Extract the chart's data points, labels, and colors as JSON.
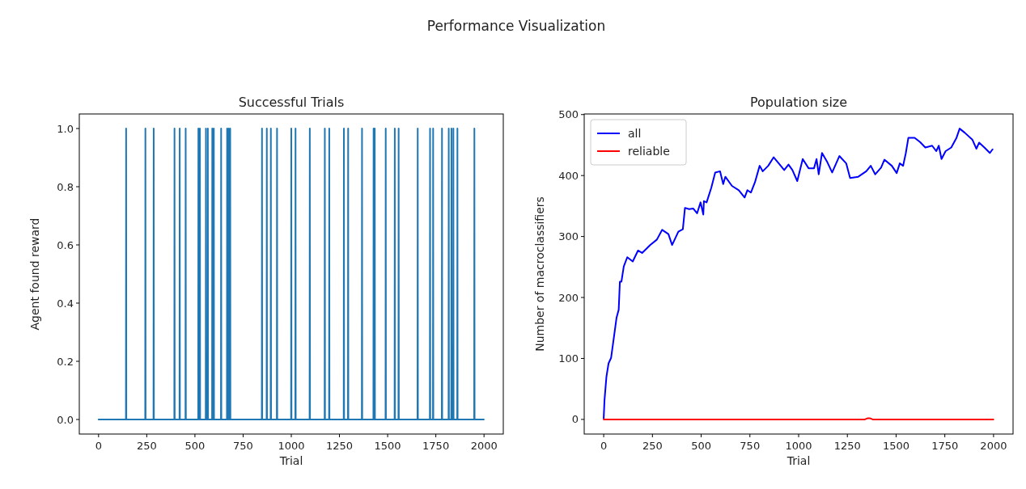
{
  "chart_data": [
    {
      "type": "line",
      "title": "Successful Trials",
      "xlabel": "Trial",
      "ylabel": "Agent found reward",
      "annotations": [
        "Performance Visualization"
      ],
      "xlim": [
        -100,
        2100
      ],
      "xticks": [
        0,
        250,
        500,
        750,
        1000,
        1250,
        1500,
        1750,
        2000
      ],
      "ylim": [
        -0.05,
        1.05
      ],
      "yticks": [
        {
          "value": 0,
          "label": "0.0"
        },
        {
          "value": 0.2,
          "label": "0.2"
        },
        {
          "value": 0.4,
          "label": "0.4"
        },
        {
          "value": 0.6,
          "label": "0.6"
        },
        {
          "value": 0.8,
          "label": "0.8"
        },
        {
          "value": 1,
          "label": "1.0"
        }
      ],
      "grid": false,
      "legend": false,
      "series": [
        {
          "color": "#1f77b4",
          "x": [
            0,
            142,
            143,
            144,
            242,
            243,
            244,
            285,
            286,
            287,
            393,
            394,
            395,
            420,
            421,
            422,
            451,
            452,
            453,
            517,
            518,
            519,
            525,
            526,
            527,
            556,
            557,
            558,
            566,
            567,
            568,
            589,
            590,
            591,
            597,
            598,
            599,
            635,
            636,
            637,
            666,
            667,
            668,
            674,
            675,
            676,
            682,
            683,
            684,
            847,
            848,
            849,
            872,
            873,
            874,
            893,
            894,
            895,
            925,
            926,
            927,
            999,
            1000,
            1001,
            1021,
            1022,
            1023,
            1095,
            1096,
            1097,
            1173,
            1174,
            1175,
            1196,
            1197,
            1198,
            1272,
            1273,
            1274,
            1294,
            1295,
            1296,
            1366,
            1367,
            1368,
            1426,
            1427,
            1428,
            1432,
            1433,
            1434,
            1489,
            1490,
            1491,
            1536,
            1537,
            1538,
            1556,
            1557,
            1558,
            1655,
            1656,
            1657,
            1719,
            1720,
            1721,
            1735,
            1736,
            1737,
            1781,
            1782,
            1783,
            1816,
            1817,
            1818,
            1830,
            1831,
            1832,
            1840,
            1841,
            1842,
            1861,
            1862,
            1863,
            1949,
            1950,
            1951,
            1999
          ],
          "values": [
            0,
            0,
            1,
            0,
            0,
            1,
            0,
            0,
            1,
            0,
            0,
            1,
            0,
            0,
            1,
            0,
            0,
            1,
            0,
            0,
            1,
            0,
            0,
            1,
            0,
            0,
            1,
            0,
            0,
            1,
            0,
            0,
            1,
            0,
            0,
            1,
            0,
            0,
            1,
            0,
            0,
            1,
            0,
            0,
            1,
            0,
            0,
            1,
            0,
            0,
            1,
            0,
            0,
            1,
            0,
            0,
            1,
            0,
            0,
            1,
            0,
            0,
            1,
            0,
            0,
            1,
            0,
            0,
            1,
            0,
            0,
            1,
            0,
            0,
            1,
            0,
            0,
            1,
            0,
            0,
            1,
            0,
            0,
            1,
            0,
            0,
            1,
            0,
            0,
            1,
            0,
            0,
            1,
            0,
            0,
            1,
            0,
            0,
            1,
            0,
            0,
            1,
            0,
            0,
            1,
            0,
            0,
            1,
            0,
            0,
            1,
            0,
            0,
            1,
            0,
            0,
            1,
            0,
            0,
            1,
            0,
            0,
            1,
            0,
            0,
            1,
            0,
            0
          ]
        }
      ]
    },
    {
      "type": "line",
      "title": "Population size",
      "xlabel": "Trial",
      "ylabel": "Number of macroclassifiers",
      "xlim": [
        -100,
        2100
      ],
      "xticks": [
        0,
        250,
        500,
        750,
        1000,
        1250,
        1500,
        1750,
        2000
      ],
      "ylim": [
        -24,
        501
      ],
      "yticks": [
        0,
        100,
        200,
        300,
        400,
        500
      ],
      "grid": false,
      "legend": "top left",
      "series": [
        {
          "name": "all",
          "color": "#0000ff",
          "x": [
            0,
            4,
            14,
            25,
            38,
            52,
            66,
            77,
            83,
            91,
            103,
            121,
            149,
            176,
            197,
            238,
            273,
            300,
            332,
            351,
            383,
            406,
            417,
            438,
            459,
            479,
            497,
            511,
            514,
            528,
            552,
            572,
            597,
            613,
            624,
            658,
            693,
            723,
            737,
            755,
            776,
            800,
            816,
            844,
            872,
            898,
            926,
            948,
            968,
            993,
            1021,
            1051,
            1079,
            1092,
            1103,
            1120,
            1147,
            1172,
            1209,
            1244,
            1264,
            1306,
            1347,
            1370,
            1393,
            1423,
            1440,
            1478,
            1503,
            1519,
            1536,
            1550,
            1563,
            1595,
            1623,
            1650,
            1685,
            1706,
            1719,
            1733,
            1754,
            1783,
            1810,
            1826,
            1853,
            1891,
            1912,
            1926,
            1953,
            1981,
            1995
          ],
          "values": [
            2,
            31,
            70,
            92,
            101,
            134,
            167,
            180,
            226,
            226,
            251,
            266,
            259,
            277,
            273,
            286,
            295,
            311,
            304,
            286,
            308,
            312,
            347,
            345,
            346,
            338,
            356,
            336,
            358,
            356,
            380,
            405,
            407,
            386,
            398,
            383,
            376,
            364,
            376,
            372,
            389,
            416,
            407,
            416,
            430,
            420,
            409,
            418,
            409,
            391,
            427,
            412,
            412,
            427,
            402,
            437,
            422,
            405,
            432,
            420,
            396,
            398,
            407,
            416,
            402,
            413,
            426,
            416,
            404,
            420,
            416,
            437,
            462,
            462,
            455,
            446,
            449,
            440,
            449,
            427,
            440,
            446,
            462,
            477,
            470,
            459,
            444,
            454,
            446,
            437,
            443
          ]
        },
        {
          "name": "reliable",
          "color": "#ff0000",
          "x": [
            0,
            1340,
            1355,
            1365,
            1380,
            1999
          ],
          "values": [
            0,
            0,
            2,
            2,
            0,
            0
          ]
        }
      ]
    }
  ]
}
